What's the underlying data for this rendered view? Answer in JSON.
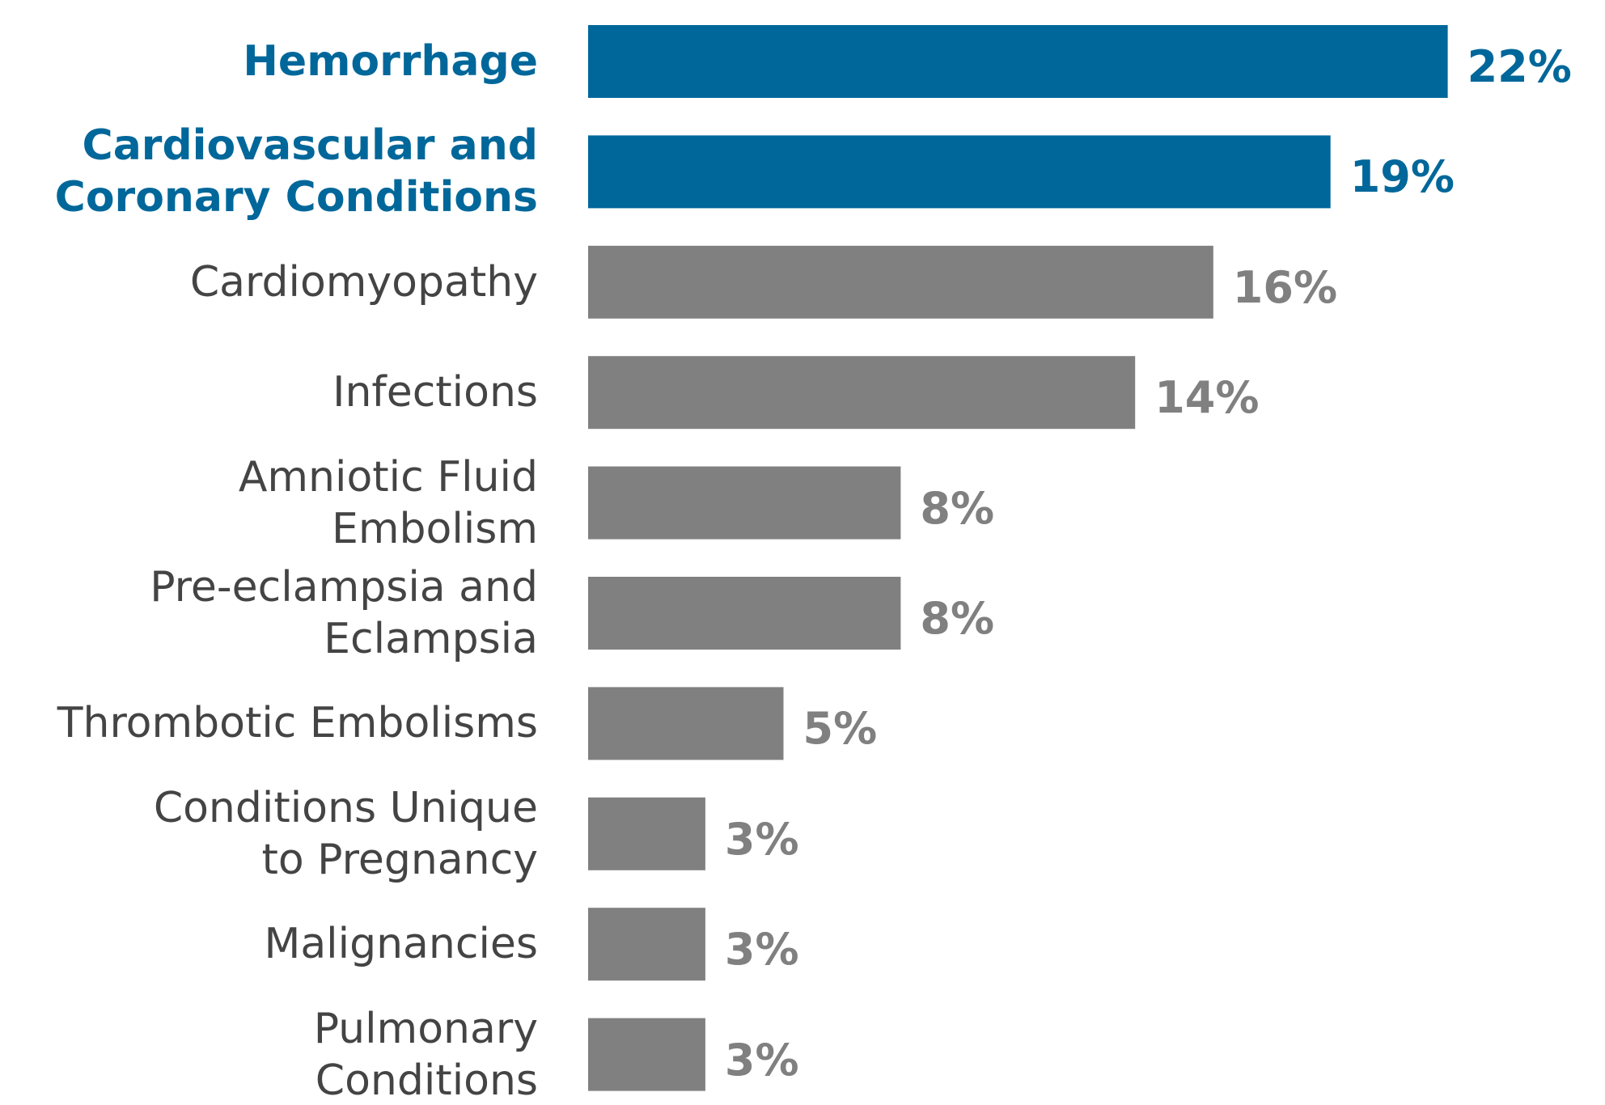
{
  "chart_data": {
    "type": "bar",
    "orientation": "horizontal",
    "categories": [
      "Hemorrhage",
      "Cardiovascular and\nCoronary Conditions",
      "Cardiomyopathy",
      "Infections",
      "Amniotic Fluid\nEmbolism",
      "Pre-eclampsia and\nEclampsia",
      "Thrombotic Embolisms",
      "Conditions Unique\nto Pregnancy",
      "Malignancies",
      "Pulmonary\nConditions"
    ],
    "values": [
      22,
      19,
      16,
      14,
      8,
      8,
      5,
      3,
      3,
      3
    ],
    "value_labels": [
      "22%",
      "19%",
      "16%",
      "14%",
      "8%",
      "8%",
      "5%",
      "3%",
      "3%",
      "3%"
    ],
    "colors": [
      "#00679a",
      "#00679a",
      "#808080",
      "#808080",
      "#808080",
      "#808080",
      "#808080",
      "#808080",
      "#808080",
      "#808080"
    ],
    "highlighted": [
      true,
      true,
      false,
      false,
      false,
      false,
      false,
      false,
      false,
      false
    ]
  }
}
